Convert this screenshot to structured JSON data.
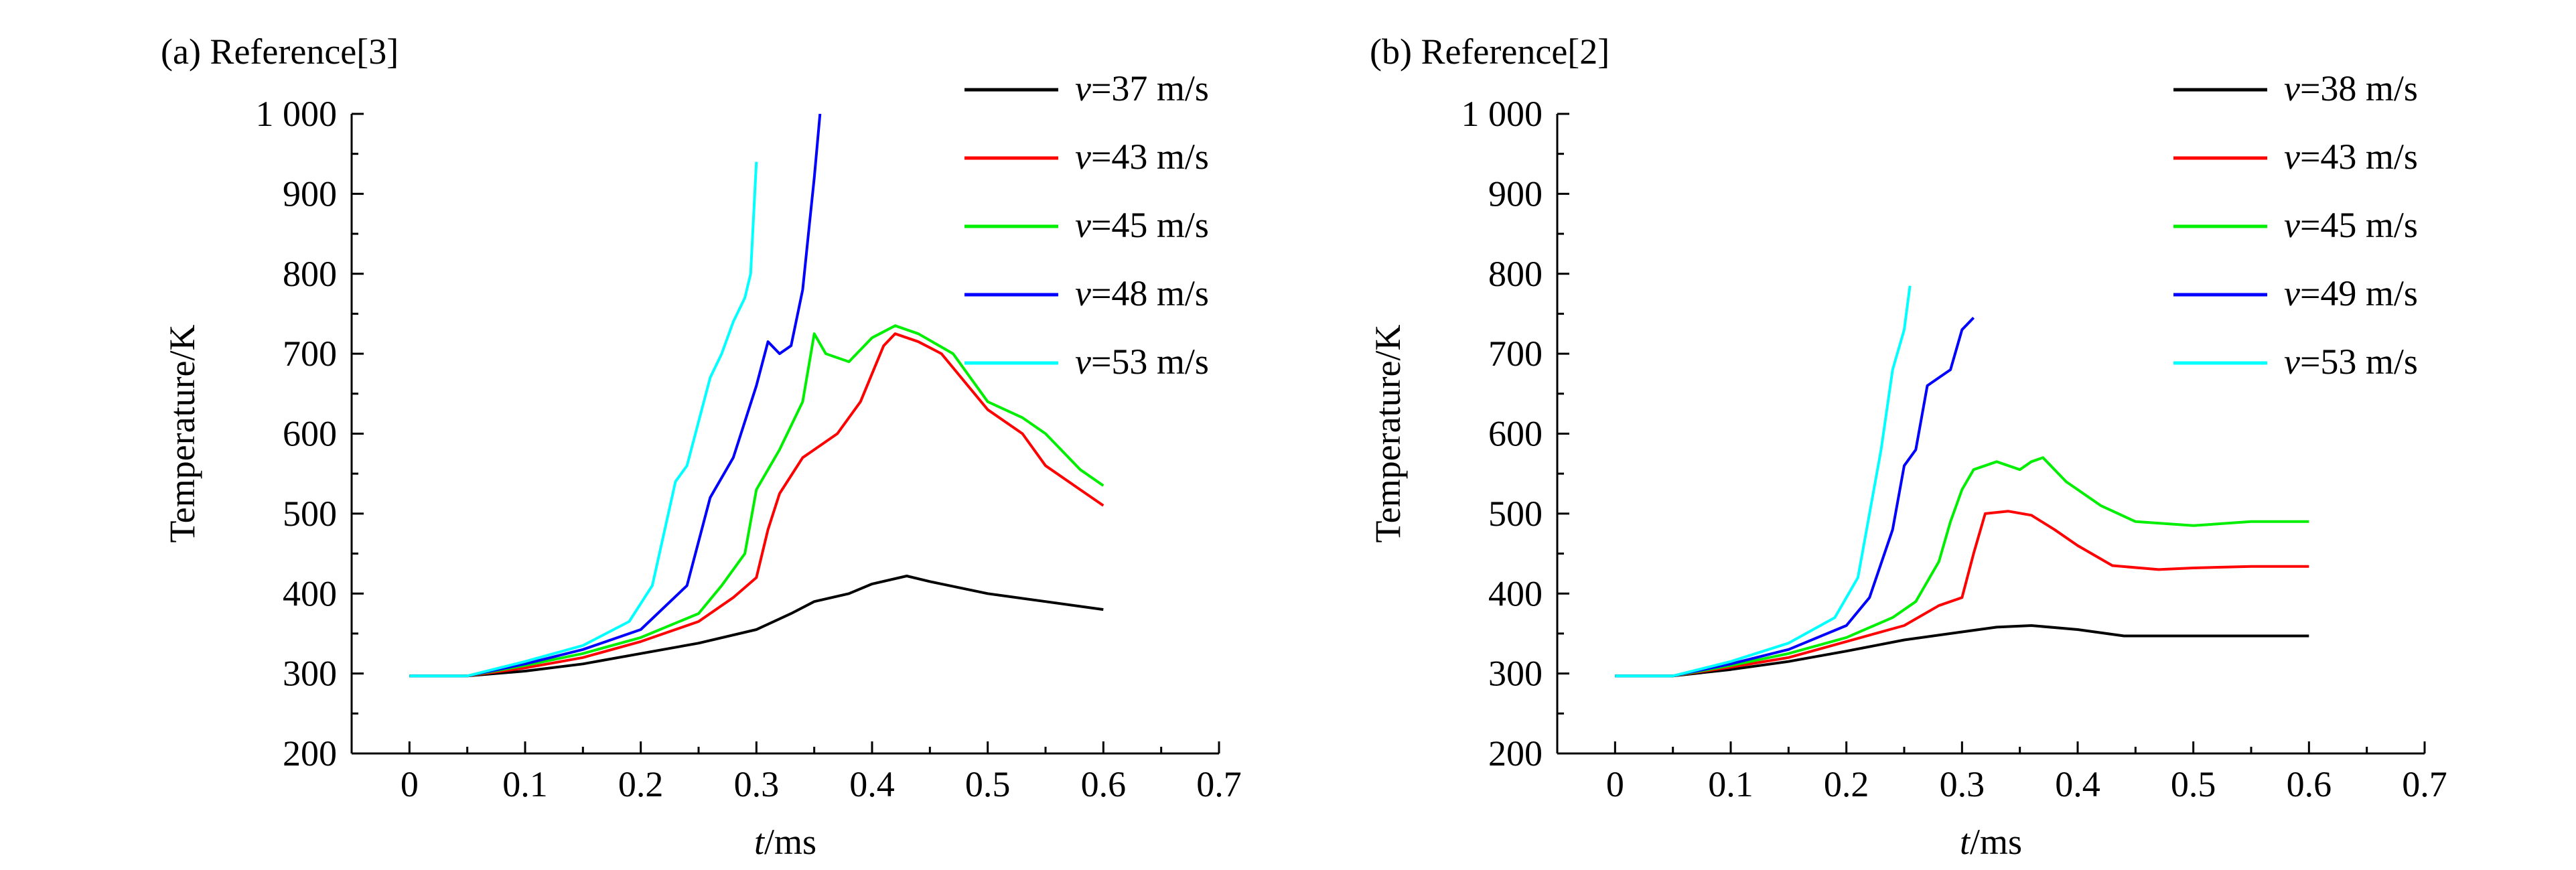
{
  "chart_data": [
    {
      "type": "line",
      "panel_label": "(a) Reference[3]",
      "xlabel": "t/ms",
      "ylabel": "Temperature/K",
      "xlim": [
        -0.05,
        0.7
      ],
      "ylim": [
        200,
        1000
      ],
      "xticks": [
        0,
        0.1,
        0.2,
        0.3,
        0.4,
        0.5,
        0.6,
        0.7
      ],
      "xtick_labels": [
        "0",
        "0.1",
        "0.2",
        "0.3",
        "0.4",
        "0.5",
        "0.6",
        "0.7"
      ],
      "yticks": [
        200,
        300,
        400,
        500,
        600,
        700,
        800,
        900,
        1000
      ],
      "ytick_labels": [
        "200",
        "300",
        "400",
        "500",
        "600",
        "700",
        "800",
        "900",
        "1 000"
      ],
      "legend_position": "top-right",
      "series": [
        {
          "name": "v=37 m/s",
          "color": "#000000",
          "x": [
            0,
            0.05,
            0.1,
            0.15,
            0.2,
            0.25,
            0.3,
            0.33,
            0.35,
            0.38,
            0.4,
            0.43,
            0.45,
            0.5,
            0.55,
            0.6
          ],
          "y": [
            297,
            297,
            303,
            312,
            325,
            338,
            355,
            375,
            390,
            400,
            412,
            422,
            415,
            400,
            390,
            380
          ]
        },
        {
          "name": "v=43 m/s",
          "color": "#ff0000",
          "x": [
            0,
            0.05,
            0.1,
            0.15,
            0.2,
            0.25,
            0.28,
            0.3,
            0.31,
            0.32,
            0.34,
            0.35,
            0.37,
            0.39,
            0.41,
            0.42,
            0.44,
            0.46,
            0.5,
            0.53,
            0.55,
            0.58,
            0.6
          ],
          "y": [
            297,
            297,
            307,
            320,
            340,
            365,
            395,
            420,
            480,
            525,
            570,
            580,
            600,
            640,
            710,
            725,
            715,
            700,
            630,
            600,
            560,
            530,
            510
          ]
        },
        {
          "name": "v=45 m/s",
          "color": "#00ee00",
          "x": [
            0,
            0.05,
            0.1,
            0.15,
            0.2,
            0.25,
            0.27,
            0.29,
            0.3,
            0.32,
            0.34,
            0.35,
            0.36,
            0.38,
            0.4,
            0.42,
            0.44,
            0.47,
            0.5,
            0.53,
            0.55,
            0.58,
            0.6
          ],
          "y": [
            297,
            297,
            310,
            325,
            345,
            375,
            410,
            450,
            530,
            580,
            640,
            725,
            700,
            690,
            720,
            735,
            725,
            700,
            640,
            620,
            600,
            555,
            535
          ]
        },
        {
          "name": "v=48 m/s",
          "color": "#0000ff",
          "x": [
            0,
            0.05,
            0.1,
            0.15,
            0.2,
            0.24,
            0.26,
            0.28,
            0.3,
            0.31,
            0.32,
            0.33,
            0.34,
            0.345,
            0.35,
            0.355
          ],
          "y": [
            297,
            297,
            312,
            330,
            355,
            410,
            520,
            570,
            660,
            715,
            700,
            710,
            780,
            850,
            920,
            1000
          ]
        },
        {
          "name": "v=53 m/s",
          "color": "#00ffff",
          "x": [
            0,
            0.05,
            0.1,
            0.15,
            0.19,
            0.21,
            0.23,
            0.24,
            0.26,
            0.27,
            0.28,
            0.29,
            0.295,
            0.3
          ],
          "y": [
            297,
            297,
            315,
            335,
            365,
            410,
            540,
            560,
            670,
            700,
            740,
            770,
            800,
            940
          ]
        }
      ]
    },
    {
      "type": "line",
      "panel_label": "(b) Reference[2]",
      "xlabel": "t/ms",
      "ylabel": "Temperature/K",
      "xlim": [
        -0.05,
        0.7
      ],
      "ylim": [
        200,
        1000
      ],
      "xticks": [
        0,
        0.1,
        0.2,
        0.3,
        0.4,
        0.5,
        0.6,
        0.7
      ],
      "xtick_labels": [
        "0",
        "0.1",
        "0.2",
        "0.3",
        "0.4",
        "0.5",
        "0.6",
        "0.7"
      ],
      "yticks": [
        200,
        300,
        400,
        500,
        600,
        700,
        800,
        900,
        1000
      ],
      "ytick_labels": [
        "200",
        "300",
        "400",
        "500",
        "600",
        "700",
        "800",
        "900",
        "1 000"
      ],
      "legend_position": "top-right",
      "series": [
        {
          "name": "v=38 m/s",
          "color": "#000000",
          "x": [
            0,
            0.05,
            0.1,
            0.15,
            0.2,
            0.25,
            0.3,
            0.33,
            0.36,
            0.4,
            0.44,
            0.5,
            0.6
          ],
          "y": [
            297,
            297,
            305,
            315,
            328,
            342,
            352,
            358,
            360,
            355,
            347,
            347,
            347
          ]
        },
        {
          "name": "v=43 m/s",
          "color": "#ff0000",
          "x": [
            0,
            0.05,
            0.1,
            0.15,
            0.2,
            0.25,
            0.28,
            0.3,
            0.31,
            0.32,
            0.34,
            0.36,
            0.38,
            0.4,
            0.43,
            0.47,
            0.5,
            0.55,
            0.6
          ],
          "y": [
            297,
            297,
            308,
            320,
            340,
            360,
            385,
            395,
            450,
            500,
            503,
            498,
            480,
            460,
            435,
            430,
            432,
            434,
            434
          ]
        },
        {
          "name": "v=45 m/s",
          "color": "#00ee00",
          "x": [
            0,
            0.05,
            0.1,
            0.15,
            0.2,
            0.24,
            0.26,
            0.28,
            0.29,
            0.3,
            0.31,
            0.33,
            0.35,
            0.36,
            0.37,
            0.39,
            0.42,
            0.45,
            0.5,
            0.55,
            0.6
          ],
          "y": [
            297,
            297,
            310,
            325,
            345,
            370,
            390,
            440,
            490,
            530,
            555,
            565,
            555,
            565,
            570,
            540,
            510,
            490,
            485,
            490,
            490
          ]
        },
        {
          "name": "v=49 m/s",
          "color": "#0000ff",
          "x": [
            0,
            0.05,
            0.1,
            0.15,
            0.2,
            0.22,
            0.24,
            0.25,
            0.26,
            0.27,
            0.28,
            0.29,
            0.3,
            0.31
          ],
          "y": [
            297,
            297,
            312,
            330,
            360,
            395,
            480,
            560,
            580,
            660,
            670,
            680,
            730,
            745
          ]
        },
        {
          "name": "v=53 m/s",
          "color": "#00ffff",
          "x": [
            0,
            0.05,
            0.1,
            0.15,
            0.19,
            0.21,
            0.22,
            0.23,
            0.24,
            0.25,
            0.255
          ],
          "y": [
            297,
            297,
            315,
            338,
            370,
            420,
            500,
            580,
            680,
            730,
            785
          ]
        }
      ]
    }
  ]
}
